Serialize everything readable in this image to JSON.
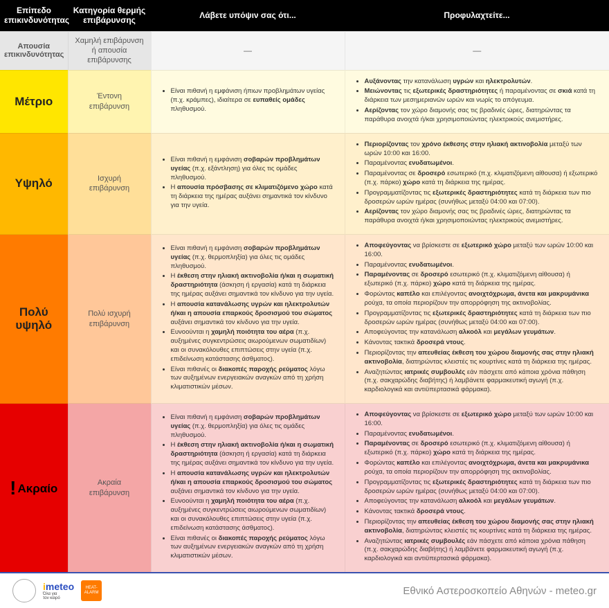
{
  "headers": {
    "level": "Επίπεδο\nεπικινδυνότητας",
    "category": "Κατηγορία θερμής\nεπιβάρυνσης",
    "notes": "Λάβετε υπόψιν σας ότι...",
    "precautions": "Προφυλαχτείτε..."
  },
  "rows": [
    {
      "key": "none",
      "level": "Απουσία\nεπικινδυνότητας",
      "category": "Χαμηλή επιβάρυνση\nή απουσία επιβάρυνσης",
      "notes_html": "",
      "precautions_html": ""
    },
    {
      "key": "moderate",
      "level": "Μέτριο",
      "category": "Έντονη\nεπιβάρυνση",
      "notes_html": "<ul><li>Είναι πιθανή η εμφάνιση ήπιων προβλημάτων υγείας (π.χ. κράμπες), ιδιαίτερα σε <b>ευπαθείς ομάδες</b> πληθυσμού.</li></ul>",
      "precautions_html": "<ul><li><b>Αυξάνοντας</b> την κατανάλωση <b>υγρών</b> και <b>ηλεκτρολυτών</b>.</li><li><b>Μειώνοντας</b> τις <b>εξωτερικές δραστηριότητες</b> ή παραμένοντας σε <b>σκιά</b> κατά τη διάρκεια των μεσημεριανών ωρών και νωρίς το απόγευμα.</li><li><b>Αερίζοντας</b> τον χώρο διαμονής σας τις βραδινές ώρες, διατηρώντας τα παράθυρα ανοιχτά ή/και χρησιμοποιώντας ηλεκτρικούς ανεμιστήρες.</li></ul>"
    },
    {
      "key": "high",
      "level": "Υψηλό",
      "category": "Ισχυρή\nεπιβάρυνση",
      "notes_html": "<ul><li>Είναι πιθανή η εμφάνιση <b>σοβαρών προβλημάτων υγείας</b> (π.χ. εξάντληση) για όλες τις ομάδες πληθυσμού.</li><li>Η <b>απουσία πρόσβασης σε κλιματιζόμενο χώρο</b> κατά τη διάρκεια της ημέρας αυξάνει σημαντικά τον κίνδυνο για την υγεία.</li></ul>",
      "precautions_html": "<ul><li><b>Περιορίζοντας</b> τον <b>χρόνο έκθεσης στην ηλιακή ακτινοβολία</b> μεταξύ των ωρών 10:00 και 16:00.</li><li>Παραμένοντας <b>ενυδατωμένοι</b>.</li><li>Παραμένοντας σε <b>δροσερό</b> εσωτερικό (π.χ. κλιματιζόμενη αίθουσα) ή εξωτερικό (π.χ. πάρκο) <b>χώρο</b> κατά τη διάρκεια της ημέρας.</li><li>Προγραμματίζοντας τις <b>εξωτερικές δραστηριότητες</b> κατά τη διάρκεια των πιο δροσερών ωρών ημέρας (συνήθως μεταξύ 04:00 και 07:00).</li><li><b>Αερίζοντας</b> τον χώρο διαμονής σας τις βραδινές ώρες, διατηρώντας τα παράθυρα ανοιχτά ή/και χρησιμοποιώντας ηλεκτρικούς ανεμιστήρες.</li></ul>"
    },
    {
      "key": "veryhigh",
      "level": "Πολύ\nυψηλό",
      "category": "Πολύ ισχυρή\nεπιβάρυνση",
      "notes_html": "<ul><li>Είναι πιθανή η εμφάνιση <b>σοβαρών προβλημάτων υγείας</b> (π.χ. θερμοπληξία) για όλες τις ομάδες πληθυσμού.</li><li>Η <b>έκθεση στην ηλιακή ακτινοβολία ή/και η σωματική δραστηριότητα</b> (άσκηση ή εργασία) κατά τη διάρκεια της ημέρας αυξάνει σημαντικά τον κίνδυνο για την υγεία.</li><li>Η <b>απουσία κατανάλωσης υγρών και ηλεκτρολυτών ή/και η απουσία επαρκούς δροσισμού του σώματος</b> αυξάνει σημαντικά τον κίνδυνο για την υγεία.</li><li>Ευνοούνται η <b>χαμηλή ποιότητα του αέρα</b> (π.χ. αυξημένες συγκεντρώσεις αιωρούμενων σωματιδίων) και οι συνακόλουθες επιπτώσεις στην υγεία (π.χ. επιδείνωση κατάστασης άσθματος).</li><li>Είναι πιθανές οι <b>διακοπές παροχής ρεύματος</b> λόγω των αυξημένων ενεργειακών αναγκών από τη χρήση κλιματιστικών μέσων.</li></ul>",
      "precautions_html": "<ul><li><b>Αποφεύγοντας</b> να βρίσκεστε σε <b>εξωτερικό χώρο</b> μεταξύ των ωρών 10:00 και 16:00.</li><li>Παραμένοντας <b>ενυδατωμένοι</b>.</li><li><b>Παραμένοντας</b> σε <b>δροσερό</b> εσωτερικό (π.χ. κλιματιζόμενη αίθουσα) ή εξωτερικό (π.χ. πάρκο) <b>χώρο</b> κατά τη διάρκεια της ημέρας.</li><li>Φορώντας <b>καπέλο</b> και επιλέγοντας <b>ανοιχτόχρωμα, άνετα και μακρυμάνικα</b> ρούχα, τα οποία περιορίζουν την απορρόφηση της ακτινοβολίας.</li><li>Προγραμματίζοντας τις <b>εξωτερικές δραστηριότητες</b> κατά τη διάρκεια των πιο δροσερών ωρών ημέρας (συνήθως μεταξύ 04:00 και 07:00).</li><li>Αποφεύγοντας την κατανάλωση <b>αλκοόλ</b> και <b>μεγάλων γευμάτων</b>.</li><li>Κάνοντας τακτικά <b>δροσερά ντους</b>.</li><li>Περιορίζοντας την <b>απευθείας έκθεση του χώρου διαμονής σας στην ηλιακή ακτινοβολία</b>, διατηρώντας κλειστές τις κουρτίνες κατά τη διάρκεια της ημέρας.</li><li>Αναζητώντας <b>ιατρικές συμβουλές</b> εάν πάσχετε από κάποια χρόνια πάθηση (π.χ. σακχαρώδης διαβήτης) ή λαμβάνετε φαρμακευτική αγωγή (π.χ. καρδιολογικά και αντιϋπερτασικά φάρμακα).</li></ul>"
    },
    {
      "key": "extreme",
      "level": "Ακραίο",
      "level_prefix": "!",
      "category": "Ακραία\nεπιβάρυνση",
      "notes_html": "<ul><li>Είναι πιθανή η εμφάνιση <b>σοβαρών προβλημάτων υγείας</b> (π.χ. θερμοπληξία) για όλες τις ομάδες πληθυσμού.</li><li>Η <b>έκθεση στην ηλιακή ακτινοβολία ή/και η σωματική δραστηριότητα</b> (άσκηση ή εργασία) κατά τη διάρκεια της ημέρας αυξάνει σημαντικά τον κίνδυνο για την υγεία.</li><li>Η <b>απουσία κατανάλωσης υγρών και ηλεκτρολυτών ή/και η απουσία επαρκούς δροσισμού του σώματος</b> αυξάνει σημαντικά τον κίνδυνο για την υγεία.</li><li>Ευνοούνται η <b>χαμηλή ποιότητα του αέρα</b> (π.χ. αυξημένες συγκεντρώσεις αιωρούμενων σωματιδίων) και οι συνακόλουθες επιπτώσεις στην υγεία (π.χ. επιδείνωση κατάστασης άσθματος).</li><li>Είναι πιθανές οι <b>διακοπές παροχής ρεύματος</b> λόγω των αυξημένων ενεργειακών αναγκών από τη χρήση κλιματιστικών μέσων.</li></ul>",
      "precautions_html": "<ul><li><b>Αποφεύγοντας</b> να βρίσκεστε σε <b>εξωτερικό χώρο</b> μεταξύ των ωρών 10:00 και 16:00.</li><li>Παραμένοντας <b>ενυδατωμένοι</b>.</li><li><b>Παραμένοντας</b> σε <b>δροσερό</b> εσωτερικό (π.χ. κλιματιζόμενη αίθουσα) ή εξωτερικό (π.χ. πάρκο) <b>χώρο</b> κατά τη διάρκεια της ημέρας.</li><li>Φορώντας <b>καπέλο</b> και επιλέγοντας <b>ανοιχτόχρωμα, άνετα και μακρυμάνικα</b> ρούχα, τα οποία περιορίζουν την απορρόφηση της ακτινοβολίας.</li><li>Προγραμματίζοντας τις <b>εξωτερικές δραστηριότητες</b> κατά τη διάρκεια των πιο δροσερών ωρών ημέρας (συνήθως μεταξύ 04:00 και 07:00).</li><li>Αποφεύγοντας την κατανάλωση <b>αλκοόλ</b> και <b>μεγάλων γευμάτων</b>.</li><li>Κάνοντας τακτικά <b>δροσερά ντους</b>.</li><li>Περιορίζοντας την <b>απευθείας έκθεση του χώρου διαμονής σας στην ηλιακή ακτινοβολία</b>, διατηρώντας κλειστές τις κουρτίνες κατά τη διάρκεια της ημέρας.</li><li>Αναζητώντας <b>ιατρικές συμβουλές</b> εάν πάσχετε από κάποια χρόνια πάθηση (π.χ. σακχαρώδης διαβήτης) ή λαμβάνετε φαρμακευτική αγωγή (π.χ. καρδιολογικά και αντιϋπερτασικά φάρμακα).</li></ul>"
    }
  ],
  "footer": {
    "logos": {
      "meteo": "meteo",
      "meteo_sub": "Όλα για\nτον καιρό",
      "heat": "HEAT-ALARM"
    },
    "attribution": "Εθνικό Αστεροσκοπείο Αθηνών - meteo.gr"
  },
  "colors": {
    "none": "#e6e6e6",
    "moderate": "#ffe600",
    "high": "#ffb800",
    "veryhigh": "#ff7b00",
    "extreme": "#e60000",
    "footer_border": "#3a52b0"
  }
}
